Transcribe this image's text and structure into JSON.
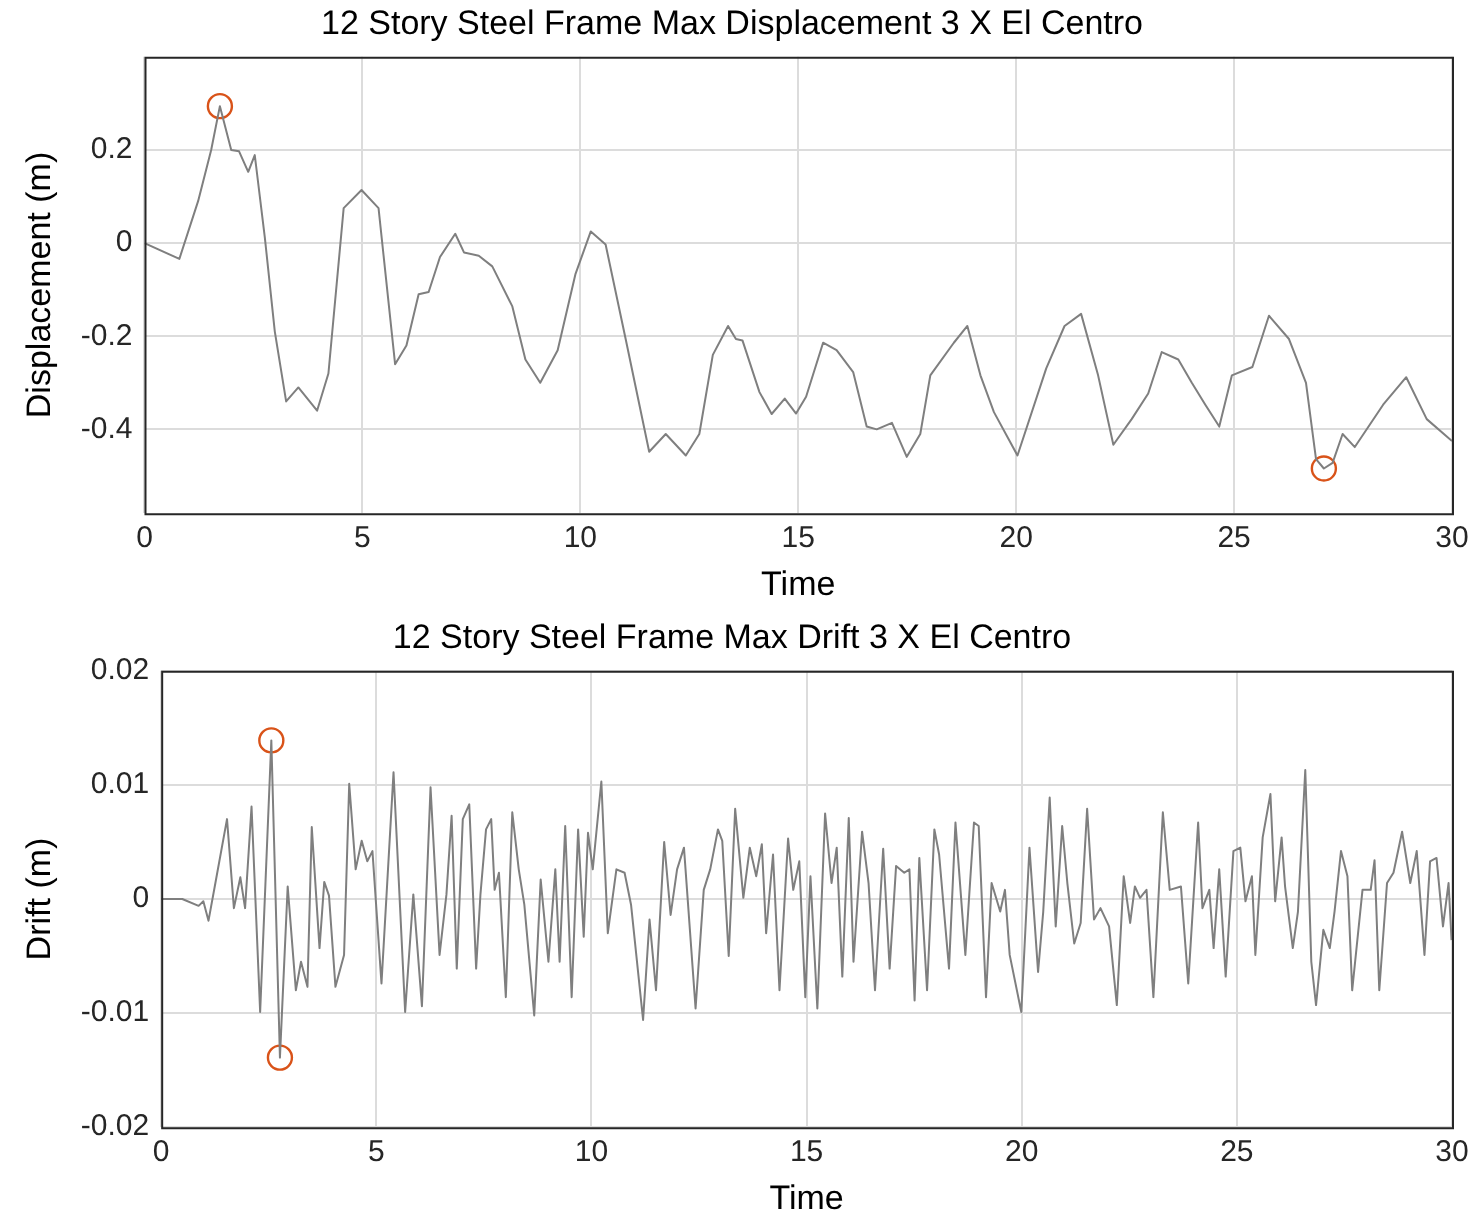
{
  "chart_data": [
    {
      "type": "line",
      "title": "12 Story Steel Frame Max Displacement 3 X El Centro",
      "xlabel": "Time",
      "ylabel": "Displacement (m)",
      "xlim": [
        0,
        30
      ],
      "xticks": [
        0,
        5,
        10,
        15,
        20,
        25,
        30
      ],
      "ylim": [
        -0.58,
        0.4
      ],
      "yticks": [
        -0.4,
        -0.2,
        0,
        0.2
      ],
      "grid": true,
      "legend": false,
      "marker": "none",
      "line_style": "solid",
      "series": [
        {
          "color": "#7f7f7f",
          "x": [
            0,
            0.8,
            1.23,
            1.53,
            1.73,
            1.99,
            2.17,
            2.38,
            2.53,
            2.76,
            2.99,
            3.25,
            3.53,
            3.96,
            4.22,
            4.57,
            4.98,
            5.37,
            5.75,
            6.01,
            6.29,
            6.52,
            6.78,
            7.13,
            7.33,
            7.67,
            7.98,
            8.44,
            8.74,
            9.08,
            9.48,
            9.89,
            10.24,
            10.58,
            11.04,
            11.58,
            11.96,
            12.42,
            12.73,
            13.04,
            13.39,
            13.57,
            13.72,
            14.11,
            14.39,
            14.69,
            14.95,
            15.18,
            15.57,
            15.88,
            16.26,
            16.57,
            16.8,
            17.15,
            17.49,
            17.8,
            18.03,
            18.57,
            18.88,
            19.18,
            19.49,
            20.03,
            20.69,
            21.11,
            21.49,
            21.88,
            22.23,
            22.65,
            23.03,
            23.34,
            23.72,
            24.03,
            24.34,
            24.66,
            24.95,
            25.42,
            25.8,
            26.26,
            26.65,
            26.88,
            27.06,
            27.26,
            27.49,
            27.77,
            28.42,
            28.95,
            29.42,
            30
          ],
          "values": [
            0,
            -0.034,
            0.09,
            0.2,
            0.294,
            0.2,
            0.197,
            0.153,
            0.189,
            0.013,
            -0.19,
            -0.34,
            -0.31,
            -0.36,
            -0.28,
            0.075,
            0.114,
            0.075,
            -0.26,
            -0.22,
            -0.11,
            -0.105,
            -0.03,
            0.02,
            -0.02,
            -0.027,
            -0.05,
            -0.136,
            -0.25,
            -0.3,
            -0.23,
            -0.066,
            0.025,
            -0.003,
            -0.206,
            -0.448,
            -0.41,
            -0.456,
            -0.41,
            -0.24,
            -0.178,
            -0.206,
            -0.209,
            -0.32,
            -0.367,
            -0.334,
            -0.366,
            -0.33,
            -0.214,
            -0.23,
            -0.277,
            -0.394,
            -0.4,
            -0.386,
            -0.459,
            -0.41,
            -0.284,
            -0.214,
            -0.178,
            -0.284,
            -0.363,
            -0.456,
            -0.269,
            -0.178,
            -0.152,
            -0.284,
            -0.433,
            -0.378,
            -0.323,
            -0.234,
            -0.25,
            -0.3,
            -0.347,
            -0.394,
            -0.284,
            -0.266,
            -0.156,
            -0.206,
            -0.3,
            -0.464,
            -0.484,
            -0.472,
            -0.41,
            -0.438,
            -0.347,
            -0.288,
            -0.378,
            -0.425
          ]
        },
        {
          "type": "scatter",
          "color": "#d95319",
          "marker": "circle",
          "x": [
            1.73,
            27.06
          ],
          "values": [
            0.294,
            -0.484
          ]
        }
      ]
    },
    {
      "type": "line",
      "title": "12 Story Steel Frame Max Drift 3 X El Centro",
      "xlabel": "Time",
      "ylabel": "Drift (m)",
      "xlim": [
        0,
        30
      ],
      "xticks": [
        0,
        5,
        10,
        15,
        20,
        25,
        30
      ],
      "ylim": [
        -0.02,
        0.02
      ],
      "yticks": [
        -0.02,
        -0.01,
        0,
        0.01,
        0.02
      ],
      "grid": true,
      "legend": false,
      "marker": "none",
      "line_style": "solid",
      "series": [
        {
          "color": "#7f7f7f",
          "x": [
            0,
            0.49,
            0.87,
            0.98,
            1.1,
            1.26,
            1.53,
            1.69,
            1.84,
            1.95,
            2.1,
            2.3,
            2.56,
            2.76,
            2.94,
            3.13,
            3.25,
            3.4,
            3.5,
            3.68,
            3.79,
            3.9,
            4.05,
            4.25,
            4.37,
            4.52,
            4.66,
            4.79,
            4.91,
            5.12,
            5.4,
            5.67,
            5.86,
            6.06,
            6.26,
            6.47,
            6.63,
            6.75,
            6.87,
            7.01,
            7.16,
            7.32,
            7.42,
            7.55,
            7.67,
            7.75,
            7.85,
            8.01,
            8.16,
            8.31,
            8.44,
            8.67,
            8.82,
            9,
            9.16,
            9.26,
            9.39,
            9.54,
            9.69,
            9.82,
            9.92,
            10.03,
            10.23,
            10.38,
            10.58,
            10.77,
            10.92,
            11.2,
            11.35,
            11.5,
            11.69,
            11.84,
            11.99,
            12.15,
            12.42,
            12.61,
            12.76,
            12.94,
            13.04,
            13.19,
            13.34,
            13.53,
            13.68,
            13.83,
            13.96,
            14.06,
            14.22,
            14.37,
            14.57,
            14.69,
            14.83,
            14.97,
            15.09,
            15.25,
            15.43,
            15.58,
            15.7,
            15.83,
            15.98,
            16.09,
            16.29,
            16.44,
            16.59,
            16.78,
            16.93,
            17.08,
            17.27,
            17.39,
            17.51,
            17.62,
            17.8,
            17.97,
            18.08,
            18.31,
            18.46,
            18.69,
            18.89,
            19,
            19.17,
            19.3,
            19.5,
            19.61,
            19.72,
            19.99,
            20.18,
            20.38,
            20.5,
            20.65,
            20.79,
            20.94,
            21.06,
            21.22,
            21.37,
            21.52,
            21.68,
            21.83,
            22.03,
            22.21,
            22.37,
            22.52,
            22.63,
            22.75,
            22.9,
            23.06,
            23.28,
            23.44,
            23.7,
            23.87,
            24.1,
            24.2,
            24.36,
            24.46,
            24.59,
            24.74,
            24.92,
            25.08,
            25.2,
            25.35,
            25.43,
            25.6,
            25.78,
            25.89,
            26.04,
            26.12,
            26.3,
            26.42,
            26.59,
            26.73,
            26.84,
            27.01,
            27.16,
            27.27,
            27.42,
            27.57,
            27.68,
            27.92,
            28.11,
            28.2,
            28.31,
            28.49,
            28.64,
            28.84,
            29.03,
            29.18,
            29.36,
            29.49,
            29.64,
            29.79,
            29.92,
            29.99
          ],
          "values": [
            0,
            0,
            -0.0006,
            -0.0002,
            -0.0019,
            0.0014,
            0.007,
            -0.0008,
            0.0019,
            -0.0008,
            0.0081,
            -0.0099,
            0.0139,
            -0.0139,
            0.0011,
            -0.008,
            -0.0055,
            -0.0077,
            0.0063,
            -0.0043,
            0.0015,
            0.0003,
            -0.0077,
            -0.0049,
            0.0101,
            0.0026,
            0.0051,
            0.0033,
            0.0042,
            -0.0074,
            0.0111,
            -0.0099,
            0.0004,
            -0.0094,
            0.0098,
            -0.0049,
            0.0004,
            0.0073,
            -0.0061,
            0.007,
            0.0083,
            -0.0061,
            0.0004,
            0.0061,
            0.007,
            0.0008,
            0.0023,
            -0.0086,
            0.0076,
            0.0026,
            -0.0005,
            -0.0102,
            0.0017,
            -0.0055,
            0.0026,
            -0.0055,
            0.0064,
            -0.0086,
            0.0061,
            -0.0033,
            0.0058,
            0.0026,
            0.0103,
            -0.003,
            0.0026,
            0.0023,
            -0.0005,
            -0.0106,
            -0.0018,
            -0.008,
            0.005,
            -0.0014,
            0.0026,
            0.0045,
            -0.0096,
            0.0008,
            0.0026,
            0.0061,
            0.0051,
            -0.005,
            0.0079,
            0.0001,
            0.0045,
            0.002,
            0.0048,
            -0.003,
            0.0039,
            -0.008,
            0.0053,
            0.0008,
            0.0033,
            -0.0086,
            0.002,
            -0.0096,
            0.0075,
            0.0014,
            0.0045,
            -0.0068,
            0.0071,
            -0.0055,
            0.0059,
            0.0014,
            -0.008,
            0.0044,
            -0.0061,
            0.0029,
            0.0023,
            0.0026,
            -0.0089,
            0.0036,
            -0.008,
            0.0061,
            0.0039,
            -0.0061,
            0.0067,
            -0.0049,
            0.0067,
            0.0064,
            -0.0086,
            0.0014,
            -0.0011,
            0.0008,
            -0.0049,
            -0.0099,
            0.0045,
            -0.0064,
            -0.0011,
            0.0089,
            -0.0024,
            0.0064,
            0.0014,
            -0.0039,
            -0.0021,
            0.0079,
            -0.0018,
            -0.0008,
            -0.0024,
            -0.0093,
            0.002,
            -0.0021,
            0.0011,
            0.0001,
            0.0008,
            -0.0086,
            0.0076,
            0.0008,
            0.0011,
            -0.0074,
            0.0067,
            -0.0008,
            0.0008,
            -0.0043,
            0.0026,
            -0.0068,
            0.0042,
            0.0045,
            -0.0002,
            0.002,
            -0.0049,
            0.0054,
            0.0092,
            -0.0002,
            0.0054,
            0.0011,
            -0.0043,
            -0.0011,
            0.0113,
            -0.0055,
            -0.0093,
            -0.0027,
            -0.0043,
            -0.0011,
            0.0042,
            0.002,
            -0.008,
            0.0008,
            0.0008,
            0.0034,
            -0.008,
            0.0014,
            0.0023,
            0.0059,
            0.0014,
            0.0042,
            -0.0049,
            0.0033,
            0.0036,
            -0.0024,
            0.0014,
            -0.0036
          ]
        },
        {
          "type": "scatter",
          "color": "#d95319",
          "marker": "circle",
          "x": [
            2.56,
            2.76
          ],
          "values": [
            0.0139,
            -0.0139
          ]
        }
      ]
    }
  ]
}
